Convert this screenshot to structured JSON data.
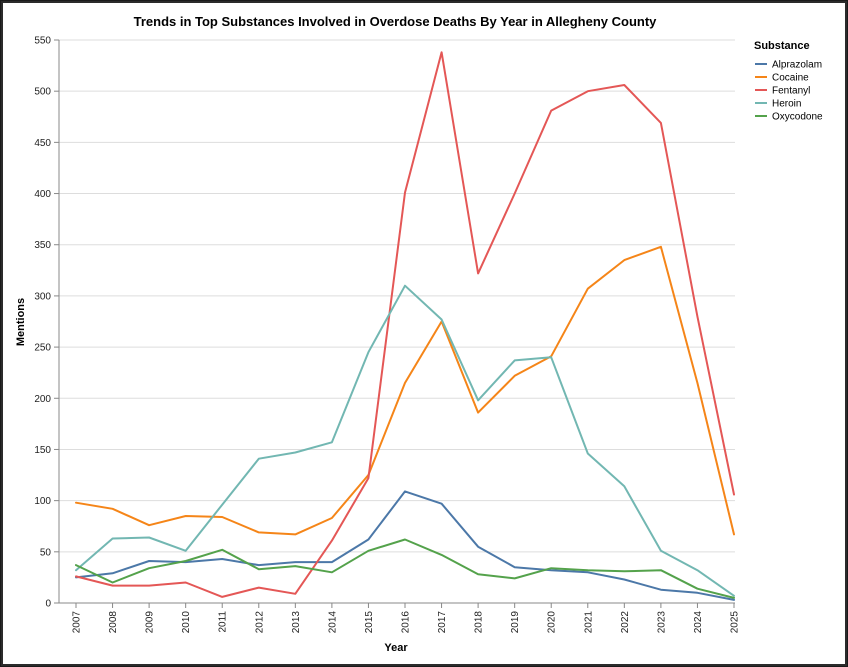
{
  "chart_data": {
    "type": "line",
    "title": "Trends in Top Substances Involved in Overdose Deaths By Year in Allegheny County",
    "xlabel": "Year",
    "ylabel": "Mentions",
    "ylim": [
      0,
      550
    ],
    "yticks": [
      "0",
      "50",
      "100",
      "150",
      "200",
      "250",
      "300",
      "350",
      "400",
      "450",
      "500",
      "550"
    ],
    "x": [
      "2007",
      "2008",
      "2009",
      "2010",
      "2011",
      "2012",
      "2013",
      "2014",
      "2015",
      "2016",
      "2017",
      "2018",
      "2019",
      "2020",
      "2021",
      "2022",
      "2023",
      "2024",
      "2025"
    ],
    "grid": "horizontal",
    "legend": {
      "title": "Substance",
      "position": "right"
    },
    "series": [
      {
        "name": "Alprazolam",
        "color": "#4c78a8",
        "values": [
          25,
          29,
          41,
          40,
          43,
          37,
          40,
          40,
          62,
          109,
          97,
          55,
          35,
          32,
          30,
          23,
          13,
          10,
          3
        ]
      },
      {
        "name": "Cocaine",
        "color": "#f58518",
        "values": [
          98,
          92,
          76,
          85,
          84,
          69,
          67,
          83,
          125,
          215,
          275,
          186,
          222,
          241,
          307,
          335,
          348,
          215,
          67
        ]
      },
      {
        "name": "Fentanyl",
        "color": "#e45756",
        "values": [
          26,
          17,
          17,
          20,
          6,
          15,
          9,
          61,
          122,
          401,
          538,
          322,
          400,
          481,
          500,
          506,
          469,
          280,
          106
        ]
      },
      {
        "name": "Heroin",
        "color": "#72b7b2",
        "values": [
          32,
          63,
          64,
          51,
          96,
          141,
          147,
          157,
          245,
          310,
          277,
          198,
          237,
          240,
          146,
          114,
          51,
          32,
          7
        ]
      },
      {
        "name": "Oxycodone",
        "color": "#54a24b",
        "values": [
          37,
          20,
          34,
          41,
          52,
          33,
          36,
          30,
          51,
          62,
          47,
          28,
          24,
          34,
          32,
          31,
          32,
          14,
          5
        ]
      }
    ]
  }
}
